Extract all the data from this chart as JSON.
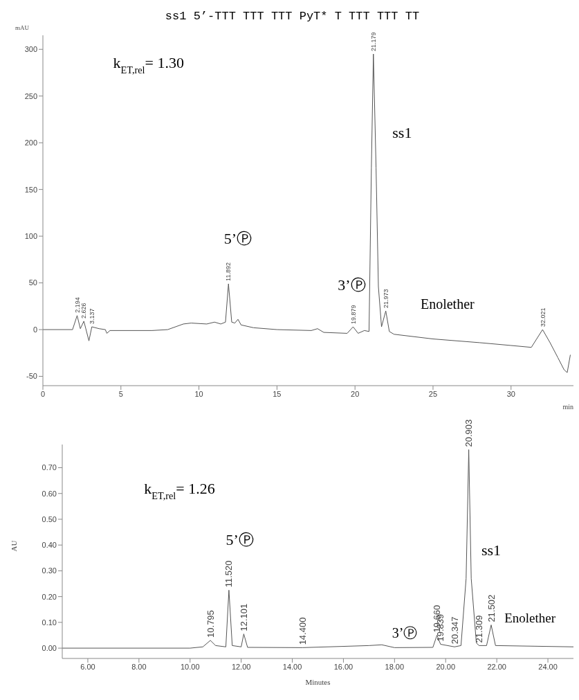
{
  "chart_data": [
    {
      "type": "line",
      "title": "ss1 5’-TTT TTT TTT PyT* T TTT TTT TT",
      "ylabel": "mAU",
      "xlabel": "min",
      "color": "#555555",
      "x": [
        0,
        1.9,
        2.194,
        2.4,
        2.626,
        2.95,
        3.137,
        3.6,
        4.0,
        4.1,
        4.3,
        7,
        8,
        9,
        9.5,
        10.5,
        11,
        11.4,
        11.7,
        11.892,
        12.1,
        12.3,
        12.5,
        12.7,
        13.5,
        15,
        17.2,
        17.6,
        18,
        19.5,
        19.879,
        20.2,
        20.6,
        20.9,
        21.05,
        21.179,
        21.35,
        21.5,
        21.7,
        21.973,
        22.2,
        22.5,
        25,
        28,
        30,
        31.3,
        32.021,
        32.5,
        33,
        33.4,
        33.6,
        33.8
      ],
      "values": [
        0,
        0,
        15,
        1,
        9,
        -12,
        3,
        1,
        0,
        -4,
        -1,
        -1,
        0,
        6,
        7,
        6,
        8,
        6,
        8,
        49,
        8,
        7,
        11,
        5,
        2,
        0,
        -1,
        1,
        -3,
        -4,
        3,
        -4,
        -1,
        -2,
        173,
        295,
        173,
        46,
        3,
        20,
        -2,
        -5,
        -10,
        -14,
        -17,
        -19,
        0,
        -14,
        -30,
        -43,
        -46,
        -27
      ],
      "xlim": [
        0,
        34
      ],
      "xticks": [
        0,
        5,
        10,
        15,
        20,
        25,
        30
      ],
      "ylim": [
        -60,
        315
      ],
      "yticks": [
        -50,
        0,
        50,
        100,
        150,
        200,
        250,
        300
      ],
      "grid": false,
      "legend": false,
      "marker": "none",
      "line_style": "solid",
      "annotations": [
        "k$_{ET,rel}$= 1.30",
        "5’Ⓟ",
        "3’Ⓟ",
        "ss1",
        "Enolether",
        {
          "text": "2.194",
          "x": 2.194,
          "y": 15
        },
        {
          "text": "2.626",
          "x": 2.626,
          "y": 9
        },
        {
          "text": "3.137",
          "x": 3.137,
          "y": 3
        },
        {
          "text": "11.892",
          "x": 11.892,
          "y": 49
        },
        {
          "text": "19.879",
          "x": 19.879,
          "y": 3
        },
        {
          "text": "21.179",
          "x": 21.179,
          "y": 295
        },
        {
          "text": "21.973",
          "x": 21.973,
          "y": 20
        },
        {
          "text": "32.021",
          "x": 32.021,
          "y": 0
        }
      ]
    },
    {
      "type": "line",
      "ylabel": "AU",
      "xlabel": "Minutes",
      "color": "#555555",
      "x": [
        5,
        10,
        10.5,
        10.795,
        11.0,
        11.4,
        11.52,
        11.65,
        12.0,
        12.101,
        12.25,
        14.4,
        17.0,
        17.5,
        18,
        19.5,
        19.66,
        19.8,
        20.347,
        20.6,
        20.8,
        20.903,
        21.0,
        21.2,
        21.309,
        21.6,
        21.78,
        21.95,
        25
      ],
      "values": [
        0,
        0,
        0.005,
        0.03,
        0.01,
        0.005,
        0.225,
        0.01,
        0.005,
        0.055,
        0.003,
        0.002,
        0.01,
        0.013,
        0.002,
        0.003,
        0.05,
        0.015,
        0.005,
        0.01,
        0.27,
        0.77,
        0.27,
        0.02,
        0.01,
        0.01,
        0.09,
        0.01,
        0.005
      ],
      "xlim": [
        5,
        25
      ],
      "xticks": [
        {
          "value": 6,
          "label": "6.00"
        },
        {
          "value": 8,
          "label": "8.00"
        },
        {
          "value": 10,
          "label": "10.00"
        },
        {
          "value": 12,
          "label": "12.00"
        },
        {
          "value": 14,
          "label": "14.00"
        },
        {
          "value": 16,
          "label": "16.00"
        },
        {
          "value": 18,
          "label": "18.00"
        },
        {
          "value": 20,
          "label": "20.00"
        },
        {
          "value": 22,
          "label": "22.00"
        },
        {
          "value": 24,
          "label": "24.00"
        }
      ],
      "ylim": [
        -0.04,
        0.79
      ],
      "yticks": [
        {
          "value": 0,
          "label": "0.00"
        },
        {
          "value": 0.1,
          "label": "0.10"
        },
        {
          "value": 0.2,
          "label": "0.20"
        },
        {
          "value": 0.3,
          "label": "0.30"
        },
        {
          "value": 0.4,
          "label": "0.40"
        },
        {
          "value": 0.5,
          "label": "0.50"
        },
        {
          "value": 0.6,
          "label": "0.60"
        },
        {
          "value": 0.7,
          "label": "0.70"
        }
      ],
      "grid": false,
      "legend": false,
      "marker": "none",
      "line_style": "solid",
      "annotations": [
        "k$_{ET,rel}$= 1.26",
        "5’Ⓟ",
        "3’Ⓟ",
        "ss1",
        "Enolether",
        {
          "text": "10.795",
          "x": 10.795,
          "y": 0.03
        },
        {
          "text": "11.520",
          "x": 11.52,
          "y": 0.225
        },
        {
          "text": "12.101",
          "x": 12.101,
          "y": 0.055
        },
        {
          "text": "14.400",
          "x": 14.4,
          "y": 0.002
        },
        {
          "text": "19.660",
          "x": 19.66,
          "y": 0.05
        },
        {
          "text": "19.839",
          "x": 19.8,
          "y": 0.015
        },
        {
          "text": "20.347",
          "x": 20.347,
          "y": 0.005
        },
        {
          "text": "20.903",
          "x": 20.903,
          "y": 0.77
        },
        {
          "text": "21.309",
          "x": 21.309,
          "y": 0.01
        },
        {
          "text": "21.502",
          "x": 21.78,
          "y": 0.09
        }
      ]
    }
  ]
}
